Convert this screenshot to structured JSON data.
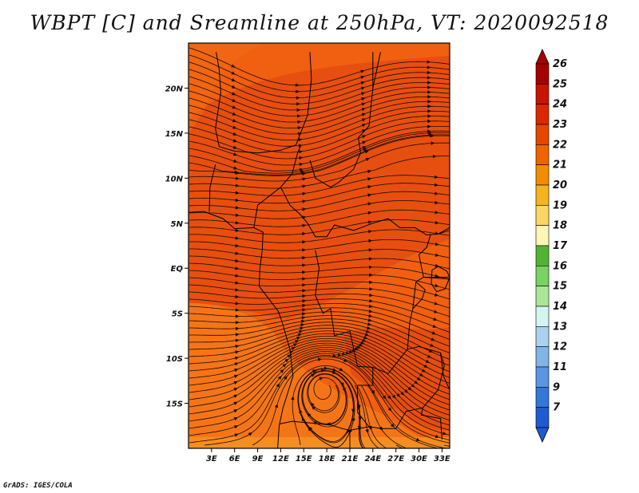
{
  "title": "WBPT [C] and Sreamline at 250hPa, VT: 2020092518",
  "footer": "GrADS: IGES/COLA",
  "colors": {
    "field_base": "#f06010",
    "field_dark": "#e24a10",
    "field_light": "#f47818",
    "streamline": "#1a0a05",
    "coast": "#000000"
  },
  "chart_data": {
    "type": "heatmap",
    "title": "WBPT [C] and Sreamline at 250hPa, VT: 2020092518",
    "xlabel": "",
    "ylabel": "",
    "lon_range": [
      0,
      34
    ],
    "lat_range": [
      -20,
      25
    ],
    "x_ticks": [
      {
        "value": 3,
        "label": "3E"
      },
      {
        "value": 6,
        "label": "6E"
      },
      {
        "value": 9,
        "label": "9E"
      },
      {
        "value": 12,
        "label": "12E"
      },
      {
        "value": 15,
        "label": "15E"
      },
      {
        "value": 18,
        "label": "18E"
      },
      {
        "value": 21,
        "label": "21E"
      },
      {
        "value": 24,
        "label": "24E"
      },
      {
        "value": 27,
        "label": "27E"
      },
      {
        "value": 30,
        "label": "30E"
      },
      {
        "value": 33,
        "label": "33E"
      }
    ],
    "y_ticks": [
      {
        "value": 20,
        "label": "20N"
      },
      {
        "value": 15,
        "label": "15N"
      },
      {
        "value": 10,
        "label": "10N"
      },
      {
        "value": 5,
        "label": "5N"
      },
      {
        "value": 0,
        "label": "EQ"
      },
      {
        "value": -5,
        "label": "5S"
      },
      {
        "value": -10,
        "label": "10S"
      },
      {
        "value": -15,
        "label": "15S"
      }
    ],
    "colorbar": {
      "labels": [
        "26",
        "25",
        "24",
        "23",
        "22",
        "21",
        "20",
        "19",
        "18",
        "17",
        "16",
        "15",
        "14",
        "13",
        "12",
        "11",
        "9",
        "7"
      ],
      "colors": [
        "#a50000",
        "#c81400",
        "#dc2800",
        "#e64600",
        "#f06400",
        "#f28c00",
        "#f5b41e",
        "#fad764",
        "#fff5b4",
        "#50b432",
        "#78d264",
        "#aae696",
        "#d2f5f0",
        "#aad2f0",
        "#82b4e6",
        "#5a96e1",
        "#3278d7",
        "#1e5ad2"
      ],
      "extend": "both"
    },
    "field_range_C": [
      22,
      25
    ],
    "features": [
      {
        "type": "cyclonic circulation center",
        "lon": 17.5,
        "lat": -13
      }
    ]
  }
}
